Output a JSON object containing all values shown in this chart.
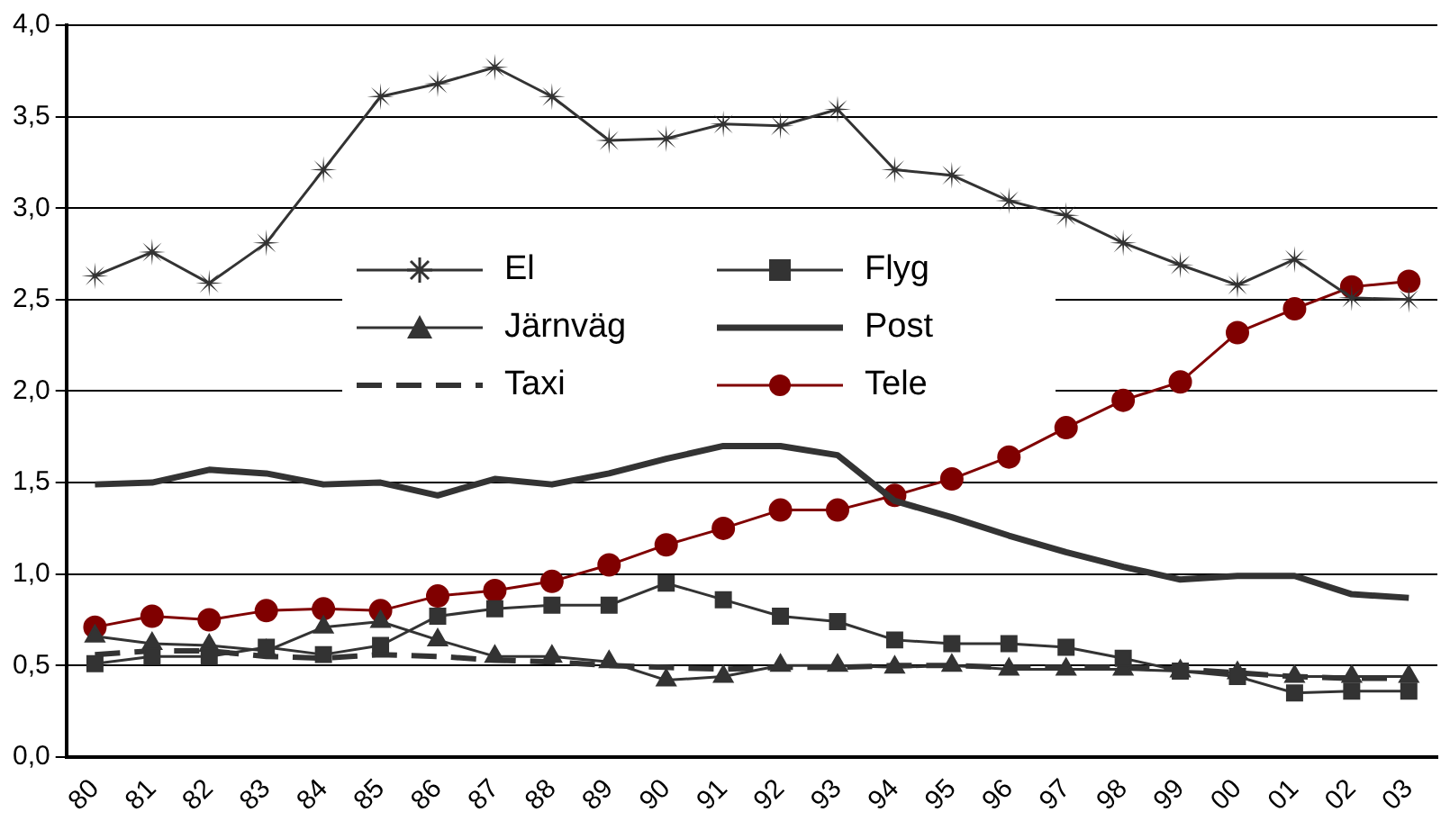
{
  "chart_data": {
    "type": "line",
    "categories": [
      "80",
      "81",
      "82",
      "83",
      "84",
      "85",
      "86",
      "87",
      "88",
      "89",
      "90",
      "91",
      "92",
      "93",
      "94",
      "95",
      "96",
      "97",
      "98",
      "99",
      "00",
      "01",
      "02",
      "03"
    ],
    "series": [
      {
        "name": "El",
        "color": "#333333",
        "marker": "star",
        "values": [
          2.63,
          2.76,
          2.59,
          2.81,
          3.21,
          3.61,
          3.68,
          3.77,
          3.61,
          3.37,
          3.38,
          3.46,
          3.45,
          3.54,
          3.21,
          3.18,
          3.04,
          2.96,
          2.81,
          2.69,
          2.58,
          2.72,
          2.51,
          2.5
        ]
      },
      {
        "name": "Flyg",
        "color": "#333333",
        "marker": "square",
        "values": [
          0.51,
          0.55,
          0.55,
          0.6,
          0.56,
          0.61,
          0.77,
          0.81,
          0.83,
          0.83,
          0.95,
          0.86,
          0.77,
          0.74,
          0.64,
          0.62,
          0.62,
          0.6,
          0.54,
          0.47,
          0.44,
          0.35,
          0.36,
          0.36
        ]
      },
      {
        "name": "Järnväg",
        "color": "#333333",
        "marker": "triangle",
        "values": [
          0.66,
          0.62,
          0.61,
          0.58,
          0.71,
          0.74,
          0.64,
          0.55,
          0.55,
          0.52,
          0.42,
          0.44,
          0.5,
          0.5,
          0.49,
          0.5,
          0.48,
          0.48,
          0.48,
          0.47,
          0.46,
          0.44,
          0.44,
          0.44
        ]
      },
      {
        "name": "Post",
        "color": "#333333",
        "marker": "none",
        "values": [
          1.49,
          1.5,
          1.57,
          1.55,
          1.49,
          1.5,
          1.43,
          1.52,
          1.49,
          1.55,
          1.63,
          1.7,
          1.7,
          1.65,
          1.4,
          1.31,
          1.21,
          1.12,
          1.04,
          0.97,
          0.99,
          0.99,
          0.89,
          0.87
        ]
      },
      {
        "name": "Taxi",
        "color": "#333333",
        "marker": "none",
        "line_style": "dashed",
        "values": [
          0.56,
          0.58,
          0.58,
          0.55,
          0.54,
          0.56,
          0.55,
          0.53,
          0.52,
          0.5,
          0.49,
          0.48,
          0.49,
          0.49,
          0.5,
          0.5,
          0.49,
          0.49,
          0.49,
          0.48,
          0.46,
          0.44,
          0.43,
          0.43
        ]
      },
      {
        "name": "Tele",
        "color": "#800000",
        "marker": "circle",
        "values": [
          0.71,
          0.77,
          0.75,
          0.8,
          0.81,
          0.8,
          0.88,
          0.91,
          0.96,
          1.05,
          1.16,
          1.25,
          1.35,
          1.35,
          1.43,
          1.52,
          1.64,
          1.8,
          1.95,
          2.05,
          2.32,
          2.45,
          2.57,
          2.6
        ]
      }
    ],
    "ylim": [
      0,
      4
    ],
    "yticks": [
      {
        "value": 0,
        "label": "0,0"
      },
      {
        "value": 0.5,
        "label": "0,5"
      },
      {
        "value": 1,
        "label": "1,0"
      },
      {
        "value": 1.5,
        "label": "1,5"
      },
      {
        "value": 2,
        "label": "2,0"
      },
      {
        "value": 2.5,
        "label": "2,5"
      },
      {
        "value": 3,
        "label": "3,0"
      },
      {
        "value": 3.5,
        "label": "3,5"
      },
      {
        "value": 4,
        "label": "4,0"
      }
    ],
    "grid": "y",
    "legend": "top"
  }
}
